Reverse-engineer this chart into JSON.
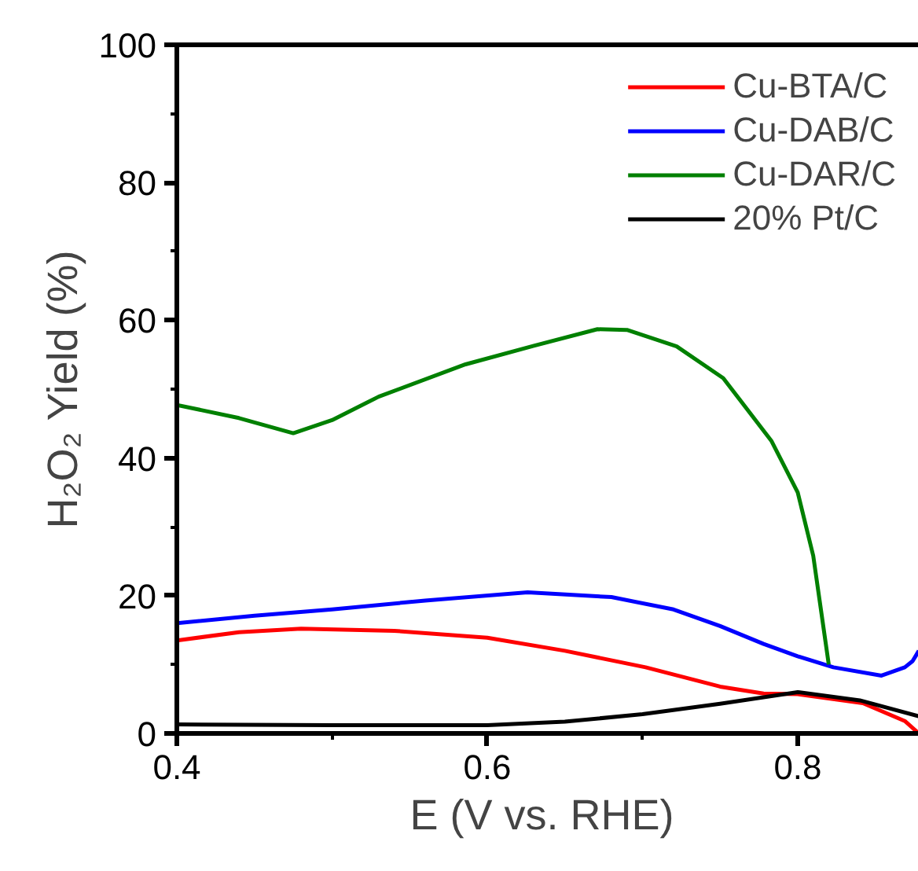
{
  "chart_data": {
    "type": "line",
    "xlabel": "E (V  vs. RHE)",
    "ylabel": "H₂O₂ Yield (%)",
    "xlim": [
      0.4,
      0.878
    ],
    "ylim": [
      0,
      100
    ],
    "xticks": [
      0.4,
      0.6,
      0.8
    ],
    "yticks": [
      0,
      20,
      40,
      60,
      80,
      100
    ],
    "grid": false,
    "legend": "top right",
    "line_style": "solid",
    "series": [
      {
        "name": "Cu-BTA/C",
        "color": "#ff0000",
        "x": [
          0.4,
          0.44,
          0.48,
          0.54,
          0.6,
          0.65,
          0.702,
          0.75,
          0.778,
          0.8,
          0.842,
          0.869,
          0.878
        ],
        "values": [
          13.5,
          14.7,
          15.2,
          14.9,
          13.9,
          12.0,
          9.6,
          6.8,
          5.8,
          5.7,
          4.4,
          1.8,
          0
        ]
      },
      {
        "name": "Cu-DAB/C",
        "color": "#0000ff",
        "x": [
          0.4,
          0.45,
          0.5,
          0.56,
          0.626,
          0.68,
          0.72,
          0.75,
          0.778,
          0.8,
          0.823,
          0.854,
          0.869,
          0.874,
          0.878
        ],
        "values": [
          16,
          17.1,
          18,
          19.3,
          20.5,
          19.8,
          18,
          15.6,
          13,
          11.2,
          9.6,
          8.4,
          9.6,
          10.5,
          12
        ]
      },
      {
        "name": "Cu-DAR/C",
        "color": "#008000",
        "x": [
          0.4,
          0.44,
          0.475,
          0.5,
          0.53,
          0.586,
          0.63,
          0.671,
          0.69,
          0.722,
          0.752,
          0.783,
          0.8,
          0.81,
          0.82
        ],
        "values": [
          47.7,
          45.8,
          43.6,
          45.5,
          48.9,
          53.6,
          56.3,
          58.7,
          58.6,
          56.2,
          51.6,
          42.5,
          35,
          25.8,
          10
        ]
      },
      {
        "name": "20% Pt/C",
        "color": "#000000",
        "x": [
          0.4,
          0.5,
          0.6,
          0.65,
          0.7,
          0.75,
          0.8,
          0.84,
          0.878
        ],
        "values": [
          1.3,
          1.2,
          1.2,
          1.7,
          2.8,
          4.3,
          6.0,
          4.8,
          2.5
        ]
      }
    ]
  }
}
